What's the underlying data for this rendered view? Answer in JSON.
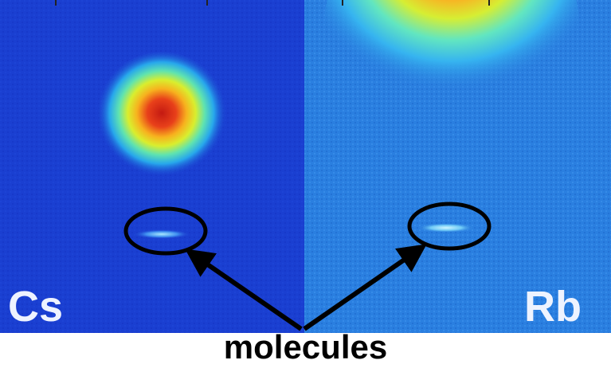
{
  "panels": [
    {
      "label": "Cs",
      "background": "#1a3fd1"
    },
    {
      "label": "Rb",
      "background": "#2a7fe0"
    }
  ],
  "caption": "molecules",
  "colors": {
    "annotation": "#000000",
    "label": "#eef3ff"
  }
}
